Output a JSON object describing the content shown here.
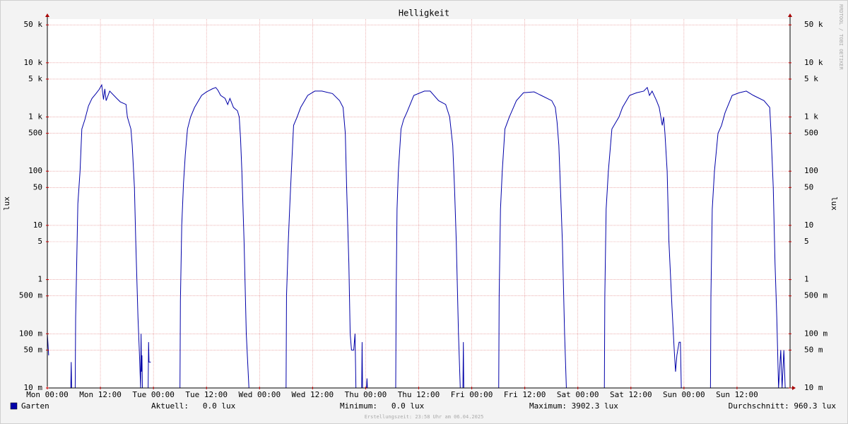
{
  "chart_data": {
    "type": "line",
    "title": "Helligkeit",
    "y_label": "lux",
    "watermark": "RRDTOOL / TOBI OETIKER",
    "footer": "Erstellungszeit: 23:58 Uhr am 06.04.2025",
    "log_y": true,
    "grid": true,
    "xlim": [
      0,
      168
    ],
    "xticks": [
      {
        "value": 0,
        "label": "Mon 00:00"
      },
      {
        "value": 12,
        "label": "Mon 12:00"
      },
      {
        "value": 24,
        "label": "Tue 00:00"
      },
      {
        "value": 36,
        "label": "Tue 12:00"
      },
      {
        "value": 48,
        "label": "Wed 00:00"
      },
      {
        "value": 60,
        "label": "Wed 12:00"
      },
      {
        "value": 72,
        "label": "Thu 00:00"
      },
      {
        "value": 84,
        "label": "Thu 12:00"
      },
      {
        "value": 96,
        "label": "Fri 00:00"
      },
      {
        "value": 108,
        "label": "Fri 12:00"
      },
      {
        "value": 120,
        "label": "Sat 00:00"
      },
      {
        "value": 132,
        "label": "Sat 12:00"
      },
      {
        "value": 144,
        "label": "Sun 00:00"
      },
      {
        "value": 156,
        "label": "Sun 12:00"
      }
    ],
    "ylim": [
      0.01,
      64000
    ],
    "yticks": [
      {
        "value": 0.01,
        "label": "10 m"
      },
      {
        "value": 0.05,
        "label": "50 m"
      },
      {
        "value": 0.1,
        "label": "100 m"
      },
      {
        "value": 0.5,
        "label": "500 m"
      },
      1,
      5,
      10,
      50,
      100,
      500,
      {
        "value": 1000,
        "label": "1 k"
      },
      {
        "value": 5000,
        "label": "5 k"
      },
      {
        "value": 10000,
        "label": "10 k"
      },
      {
        "value": 50000,
        "label": "50 k"
      }
    ],
    "x": [
      0,
      0.3,
      0.6,
      5.3,
      5.4,
      5.5,
      5.6,
      6.3,
      6.4,
      6.9,
      7.4,
      7.8,
      8.5,
      9.3,
      10.1,
      11.0,
      11.7,
      12.3,
      12.7,
      13.0,
      13.3,
      14.1,
      15.7,
      16.5,
      17.8,
      18.1,
      18.9,
      19.2,
      19.7,
      20.0,
      20.5,
      20.8,
      21.1,
      21.2,
      21.3,
      21.4,
      21.5,
      22.8,
      22.9,
      23.0,
      23.4,
      23.6,
      30.0,
      30.1,
      30.4,
      30.8,
      31.2,
      31.7,
      32.4,
      33.3,
      34.9,
      36.0,
      37.3,
      38.1,
      38.6,
      39.2,
      40.2,
      40.8,
      41.3,
      42.1,
      43.0,
      43.4,
      43.7,
      44.0,
      44.5,
      45.0,
      45.6,
      45.8,
      54.0,
      54.1,
      54.5,
      54.9,
      55.3,
      55.7,
      56.5,
      57.3,
      58.9,
      60.5,
      62.1,
      64.5,
      66.1,
      66.9,
      67.4,
      67.7,
      68.2,
      68.5,
      68.8,
      69.3,
      69.6,
      69.8,
      70.0,
      71.1,
      71.2,
      71.3,
      71.5,
      72.2,
      72.3,
      72.4,
      72.6,
      78.8,
      78.9,
      79.1,
      79.4,
      80.0,
      80.6,
      81.3,
      82.9,
      85.3,
      86.6,
      88.5,
      90.1,
      91.0,
      91.7,
      92.1,
      92.5,
      93.0,
      93.4,
      93.6,
      94.0,
      94.1,
      94.2,
      94.4,
      102.1,
      102.2,
      102.5,
      102.9,
      103.5,
      104.5,
      106.1,
      107.7,
      110.1,
      111.7,
      114.1,
      114.9,
      115.3,
      115.7,
      116.1,
      116.5,
      117.0,
      117.4,
      117.6,
      126.0,
      126.1,
      126.4,
      126.9,
      127.7,
      129.3,
      130.1,
      131.7,
      133.3,
      134.9,
      135.7,
      136.2,
      136.8,
      137.8,
      138.4,
      139.1,
      139.4,
      139.7,
      140.2,
      140.6,
      141.3,
      141.8,
      142.1,
      142.4,
      142.9,
      143.2,
      143.4,
      143.6,
      150.0,
      150.1,
      150.4,
      150.9,
      151.7,
      152.5,
      153.3,
      154.9,
      156.5,
      158.1,
      159.7,
      162.1,
      163.4,
      163.7,
      164.2,
      164.6,
      165.0,
      165.4,
      165.9,
      166.2,
      166.6,
      166.9,
      167.2
    ],
    "series": [
      {
        "name": "Garten",
        "color": "#0000a8",
        "values": [
          0.1,
          0.04,
          null,
          0.01,
          0.03,
          0.01,
          null,
          0.01,
          0.2,
          25,
          100,
          600,
          900,
          1600,
          2200,
          2700,
          3200,
          3900,
          2100,
          3300,
          2000,
          3000,
          2200,
          1900,
          1700,
          1000,
          600,
          300,
          50,
          5,
          0.2,
          0.05,
          0.01,
          0.1,
          0.02,
          0.04,
          0.01,
          0.01,
          0.07,
          0.03,
          0.03,
          null,
          0.01,
          0.4,
          10,
          60,
          200,
          600,
          1000,
          1500,
          2500,
          2900,
          3300,
          3500,
          3100,
          2500,
          2200,
          1700,
          2200,
          1500,
          1300,
          1000,
          400,
          100,
          5,
          0.1,
          0.01,
          null,
          0.01,
          0.5,
          5,
          30,
          150,
          700,
          1000,
          1500,
          2500,
          3000,
          3000,
          2700,
          2000,
          1500,
          500,
          50,
          2,
          0.1,
          0.05,
          0.05,
          0.1,
          0.01,
          null,
          0.01,
          0.07,
          0.01,
          null,
          0.01,
          0.015,
          0.01,
          null,
          0.01,
          0.5,
          20,
          100,
          600,
          900,
          1200,
          2500,
          3000,
          3000,
          2000,
          1700,
          1000,
          300,
          50,
          5,
          0.1,
          0.01,
          null,
          0.01,
          0.07,
          0.01,
          null,
          0.01,
          0.5,
          20,
          100,
          600,
          1000,
          2000,
          2800,
          2900,
          2500,
          2000,
          1500,
          800,
          300,
          40,
          5,
          0.1,
          0.01,
          null,
          0.01,
          0.5,
          20,
          100,
          600,
          1000,
          1500,
          2500,
          2800,
          3000,
          3500,
          2500,
          3000,
          2000,
          1500,
          700,
          1000,
          500,
          100,
          5,
          0.3,
          0.05,
          0.02,
          0.04,
          0.07,
          0.07,
          0.01,
          null,
          0.01,
          0.5,
          20,
          100,
          500,
          700,
          1200,
          2500,
          2800,
          3000,
          2500,
          2000,
          1500,
          500,
          50,
          2,
          0.2,
          0.01,
          0.05,
          0.01,
          0.05,
          0.01,
          null
        ]
      }
    ],
    "stats": [
      "Aktuell:   0.0 lux",
      "Minimum:   0.0 lux",
      "Maximum: 3902.3 lux",
      "Durchschnitt: 960.3 lux"
    ]
  }
}
